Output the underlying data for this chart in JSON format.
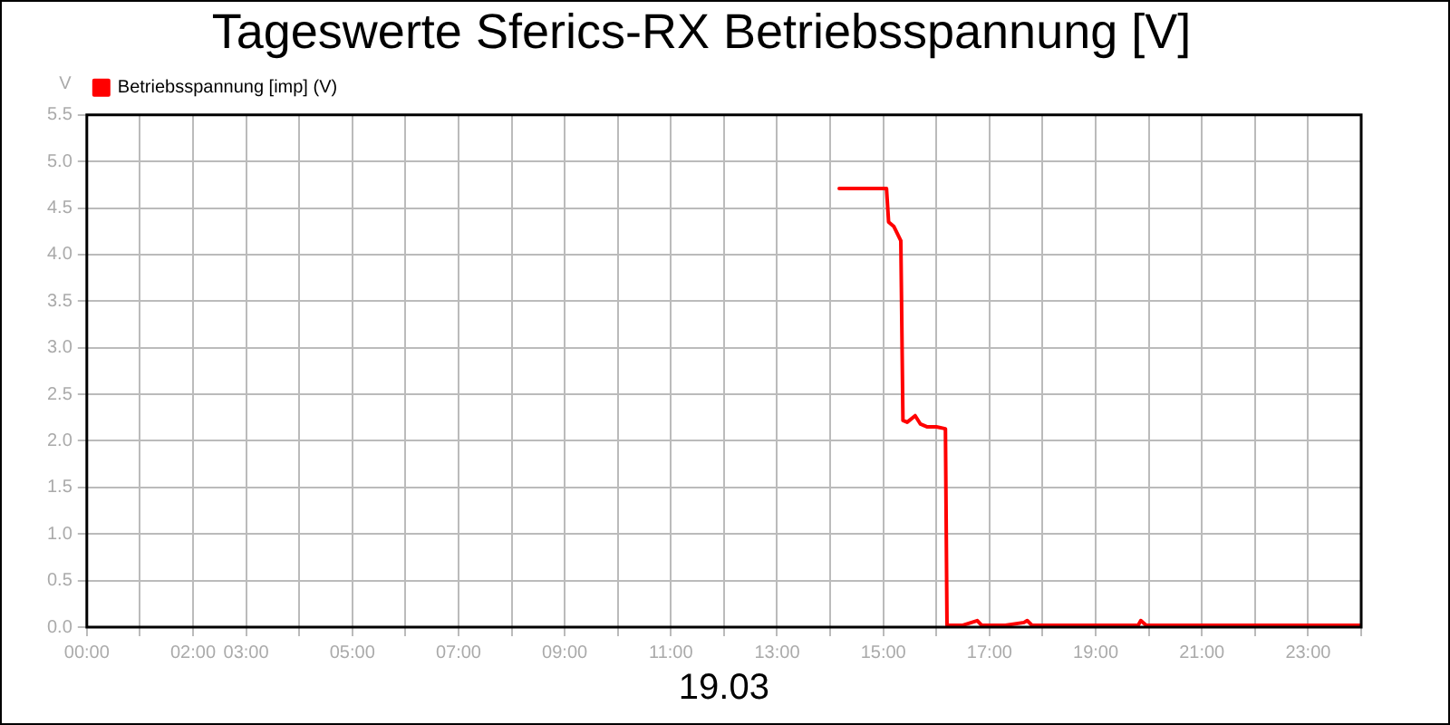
{
  "chart_data": {
    "type": "line",
    "title": "Tageswerte Sferics-RX Betriebsspannung [V]",
    "xlabel": "19.03",
    "ylabel": "V",
    "series": [
      {
        "name": "Betriebsspannung [imp] (V)",
        "color": "#ff0000",
        "x": [
          14.17,
          14.5,
          14.8,
          15.06,
          15.1,
          15.2,
          15.33,
          15.37,
          15.45,
          15.6,
          15.7,
          15.83,
          16.0,
          16.17,
          16.2,
          16.5,
          16.77,
          16.85,
          17.3,
          17.65,
          17.71,
          17.8,
          18.5,
          19.8,
          19.85,
          19.95,
          21,
          22,
          23,
          24
        ],
        "values": [
          4.71,
          4.71,
          4.71,
          4.71,
          4.35,
          4.3,
          4.15,
          2.22,
          2.2,
          2.27,
          2.18,
          2.15,
          2.15,
          2.13,
          0.02,
          0.02,
          0.07,
          0.02,
          0.02,
          0.05,
          0.07,
          0.02,
          0.02,
          0.02,
          0.07,
          0.02,
          0.02,
          0.02,
          0.02,
          0.02
        ]
      }
    ],
    "xlim": [
      0,
      24
    ],
    "xticks": [
      {
        "value": 0,
        "label": "00:00"
      },
      {
        "value": 1,
        "label": null
      },
      {
        "value": 2,
        "label": "02:00"
      },
      {
        "value": 3,
        "label": "03:00"
      },
      {
        "value": 4,
        "label": null
      },
      {
        "value": 5,
        "label": "05:00"
      },
      {
        "value": 6,
        "label": null
      },
      {
        "value": 7,
        "label": "07:00"
      },
      {
        "value": 8,
        "label": null
      },
      {
        "value": 9,
        "label": "09:00"
      },
      {
        "value": 10,
        "label": null
      },
      {
        "value": 11,
        "label": "11:00"
      },
      {
        "value": 12,
        "label": null
      },
      {
        "value": 13,
        "label": "13:00"
      },
      {
        "value": 14,
        "label": null
      },
      {
        "value": 15,
        "label": "15:00"
      },
      {
        "value": 16,
        "label": null
      },
      {
        "value": 17,
        "label": "17:00"
      },
      {
        "value": 18,
        "label": null
      },
      {
        "value": 19,
        "label": "19:00"
      },
      {
        "value": 20,
        "label": null
      },
      {
        "value": 21,
        "label": "21:00"
      },
      {
        "value": 22,
        "label": null
      },
      {
        "value": 23,
        "label": "23:00"
      },
      {
        "value": 24,
        "label": null
      }
    ],
    "ylim": [
      0,
      5.5
    ],
    "yticks": [
      {
        "value": 0,
        "label": "0.0"
      },
      {
        "value": 0.5,
        "label": "0.5"
      },
      {
        "value": 1,
        "label": "1.0"
      },
      {
        "value": 1.5,
        "label": "1.5"
      },
      {
        "value": 2,
        "label": "2.0"
      },
      {
        "value": 2.5,
        "label": "2.5"
      },
      {
        "value": 3,
        "label": "3.0"
      },
      {
        "value": 3.5,
        "label": "3.5"
      },
      {
        "value": 4,
        "label": "4.0"
      },
      {
        "value": 4.5,
        "label": "4.5"
      },
      {
        "value": 5,
        "label": "5.0"
      },
      {
        "value": 5.5,
        "label": "5.5"
      }
    ],
    "grid": true,
    "legend": "top left",
    "marker": "none",
    "line_style": "solid"
  }
}
